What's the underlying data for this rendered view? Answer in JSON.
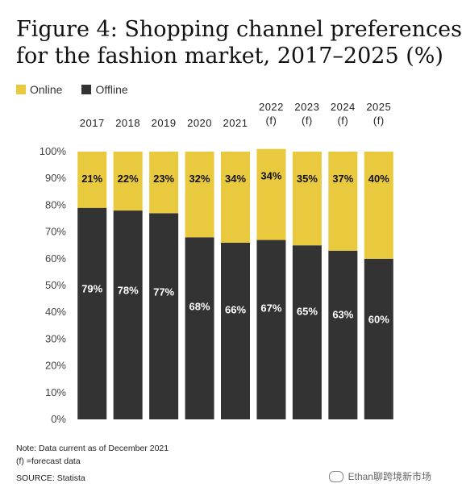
{
  "header": {
    "title_line1": "Figure 4: Shopping channel preferences",
    "title_line2": "for the fashion market, 2017–2025 (%)"
  },
  "legend": [
    {
      "label": "Online",
      "color": "#E9C93E"
    },
    {
      "label": "Offline",
      "color": "#333333"
    }
  ],
  "chart_data": {
    "type": "bar",
    "stacked": true,
    "categories": [
      [
        "2017"
      ],
      [
        "2018"
      ],
      [
        "2019"
      ],
      [
        "2020"
      ],
      [
        "2021"
      ],
      [
        "2022",
        "(f)"
      ],
      [
        "2023",
        "(f)"
      ],
      [
        "2024",
        "(f)"
      ],
      [
        "2025",
        "(f)"
      ]
    ],
    "series": [
      {
        "name": "Offline",
        "color": "#333333",
        "values": [
          79,
          78,
          77,
          68,
          66,
          67,
          65,
          63,
          60
        ],
        "labels": [
          "79%",
          "78%",
          "77%",
          "68%",
          "66%",
          "67%",
          "65%",
          "63%",
          "60%"
        ]
      },
      {
        "name": "Online",
        "color": "#E9C93E",
        "values": [
          21,
          22,
          23,
          32,
          34,
          34,
          35,
          37,
          40
        ],
        "labels": [
          "21%",
          "22%",
          "23%",
          "32%",
          "34%",
          "34%",
          "35%",
          "37%",
          "40%"
        ]
      }
    ],
    "y_ticks": [
      "0%",
      "10%",
      "20%",
      "30%",
      "40%",
      "50%",
      "60%",
      "70%",
      "80%",
      "90%",
      "100%"
    ],
    "ylim": [
      0,
      100
    ],
    "grid": false,
    "legend_position": "top-left",
    "x_labels_position": "top"
  },
  "footer": {
    "note": "Note: Data current as of December 2021",
    "forecast_note": "(f) =forecast data",
    "source": "SOURCE: Statista",
    "watermark": "Ethan聊跨境新市场"
  }
}
